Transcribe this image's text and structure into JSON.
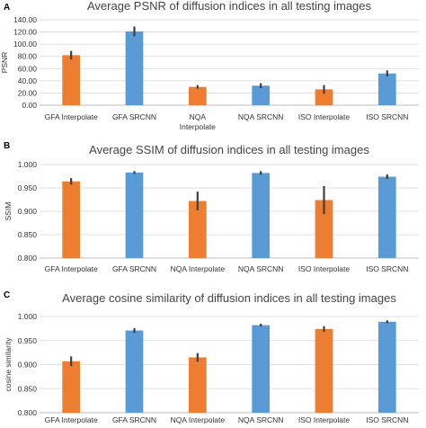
{
  "colors": {
    "interpolate": "#ED7D31",
    "srcnn": "#5B9BD5",
    "error_bar": "#404040",
    "gridline": "#D9D9D9",
    "axis": "#BFBFBF"
  },
  "chart_data": [
    {
      "panel": "A",
      "type": "bar",
      "title": "Average PSNR of diffusion indices in all testing images",
      "xlabel": "",
      "ylabel": "PSNR",
      "ylim": [
        0,
        140
      ],
      "yticks": [
        "0.00",
        "20.00",
        "40.00",
        "60.00",
        "80.00",
        "100.00",
        "120.00",
        "140.00"
      ],
      "categories": [
        [
          "GFA Interpolate"
        ],
        [
          "GFA SRCNN"
        ],
        [
          "NQA",
          "Interpolate"
        ],
        [
          "NQA SRCNN"
        ],
        [
          "ISO Interpolate"
        ],
        [
          "ISO SRCNN"
        ]
      ],
      "values": [
        82,
        121,
        30,
        32,
        26,
        52
      ],
      "errors": [
        7,
        8,
        3,
        4,
        7,
        5
      ],
      "bar_colors": [
        "interpolate",
        "srcnn",
        "interpolate",
        "srcnn",
        "interpolate",
        "srcnn"
      ],
      "grid": true
    },
    {
      "panel": "B",
      "type": "bar",
      "title": "Average SSIM of diffusion indices in all testing images",
      "xlabel": "",
      "ylabel": "SSIM",
      "ylim": [
        0.8,
        1.0
      ],
      "yticks": [
        "0.800",
        "0.850",
        "0.900",
        "0.950",
        "1.000"
      ],
      "categories": [
        [
          "GFA Interpolate"
        ],
        [
          "GFA SRCNN"
        ],
        [
          "NQA Interpolate"
        ],
        [
          "NQA SRCNN"
        ],
        [
          "ISO Interpolate"
        ],
        [
          "ISO SRCNN"
        ]
      ],
      "values": [
        0.964,
        0.983,
        0.922,
        0.982,
        0.924,
        0.974
      ],
      "errors": [
        0.007,
        0.003,
        0.02,
        0.004,
        0.03,
        0.005
      ],
      "bar_colors": [
        "interpolate",
        "srcnn",
        "interpolate",
        "srcnn",
        "interpolate",
        "srcnn"
      ],
      "grid": true
    },
    {
      "panel": "C",
      "type": "bar",
      "title": "Average cosine similarity of diffusion indices in all testing images",
      "xlabel": "",
      "ylabel": "cosine similarity",
      "ylim": [
        0.8,
        1.0
      ],
      "yticks": [
        "0.800",
        "0.850",
        "0.900",
        "0.950",
        "1.000"
      ],
      "categories": [
        [
          "GFA Interpolate"
        ],
        [
          "GFA SRCNN"
        ],
        [
          "NQA Interpolate"
        ],
        [
          "NQA SRCNN"
        ],
        [
          "ISO Interpolate"
        ],
        [
          "ISO SRCNN"
        ]
      ],
      "values": [
        0.907,
        0.971,
        0.915,
        0.982,
        0.974,
        0.989
      ],
      "errors": [
        0.01,
        0.005,
        0.009,
        0.003,
        0.006,
        0.003
      ],
      "bar_colors": [
        "interpolate",
        "srcnn",
        "interpolate",
        "srcnn",
        "interpolate",
        "srcnn"
      ],
      "grid": true
    }
  ]
}
